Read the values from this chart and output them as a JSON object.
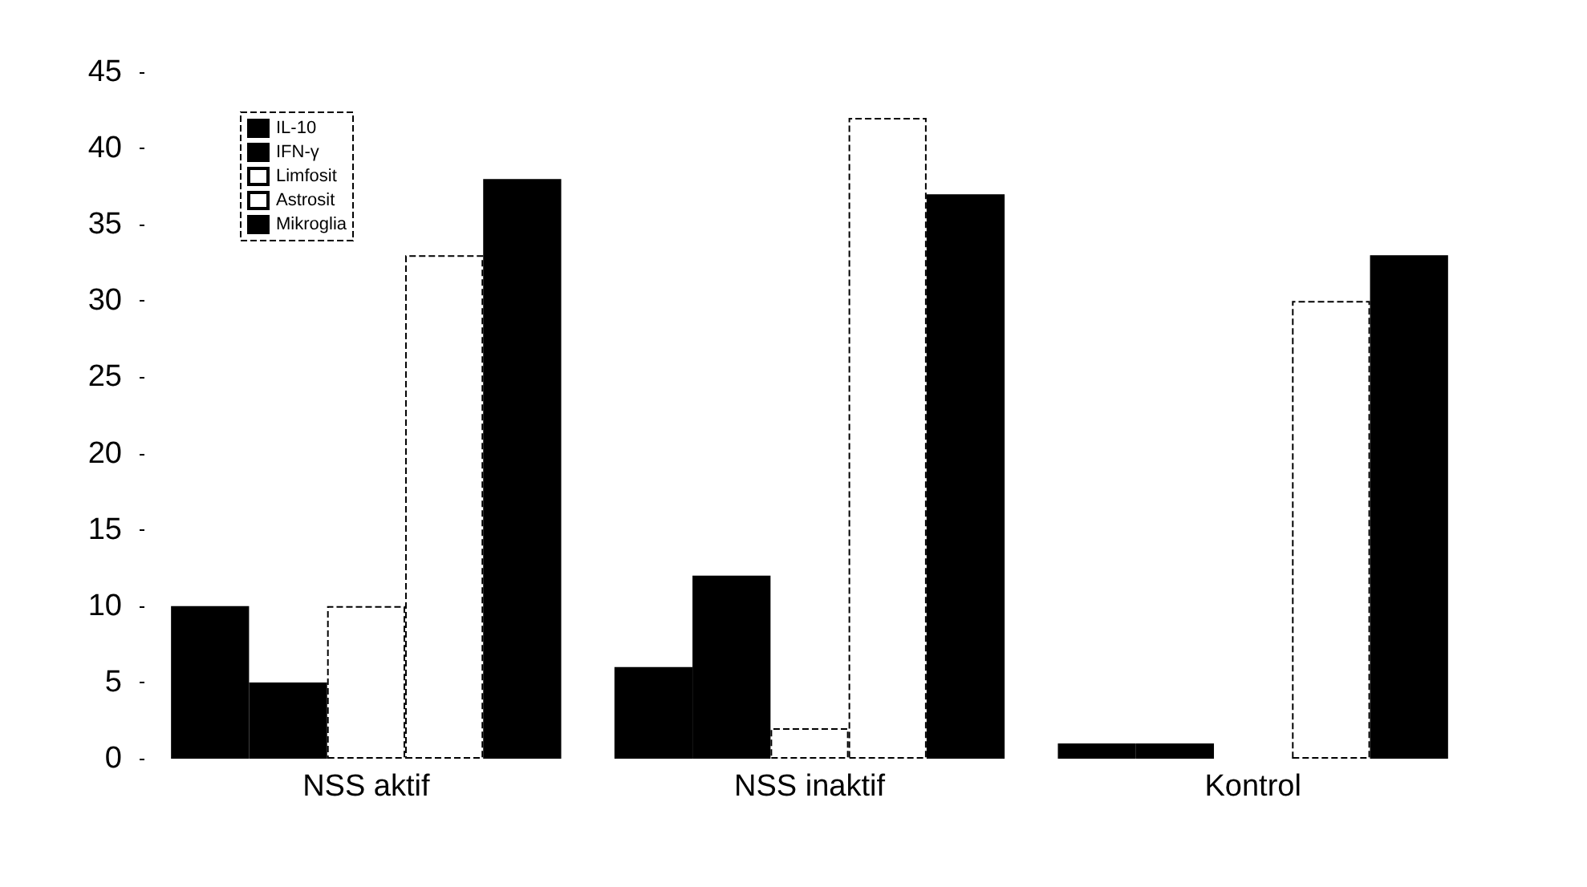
{
  "chart_data": {
    "type": "bar",
    "categories": [
      "NSS aktif",
      "NSS inaktif",
      "Kontrol"
    ],
    "series": [
      {
        "name": "IL-10",
        "color": "#000000",
        "values": [
          10,
          6,
          1
        ]
      },
      {
        "name": "IFN-γ",
        "color": "#000000",
        "values": [
          5,
          12,
          1
        ]
      },
      {
        "name": "Limfosit",
        "color": "#ffffff",
        "values": [
          10,
          2,
          0
        ]
      },
      {
        "name": "Astrosit",
        "color": "#ffffff",
        "values": [
          33,
          42,
          30
        ]
      },
      {
        "name": "Mikroglia",
        "color": "#000000",
        "values": [
          38,
          37,
          33
        ]
      }
    ],
    "ylim": [
      0,
      45
    ],
    "yticks": [
      0,
      5,
      10,
      15,
      20,
      25,
      30,
      35,
      40,
      45
    ],
    "grid": false,
    "legend": "top left"
  }
}
